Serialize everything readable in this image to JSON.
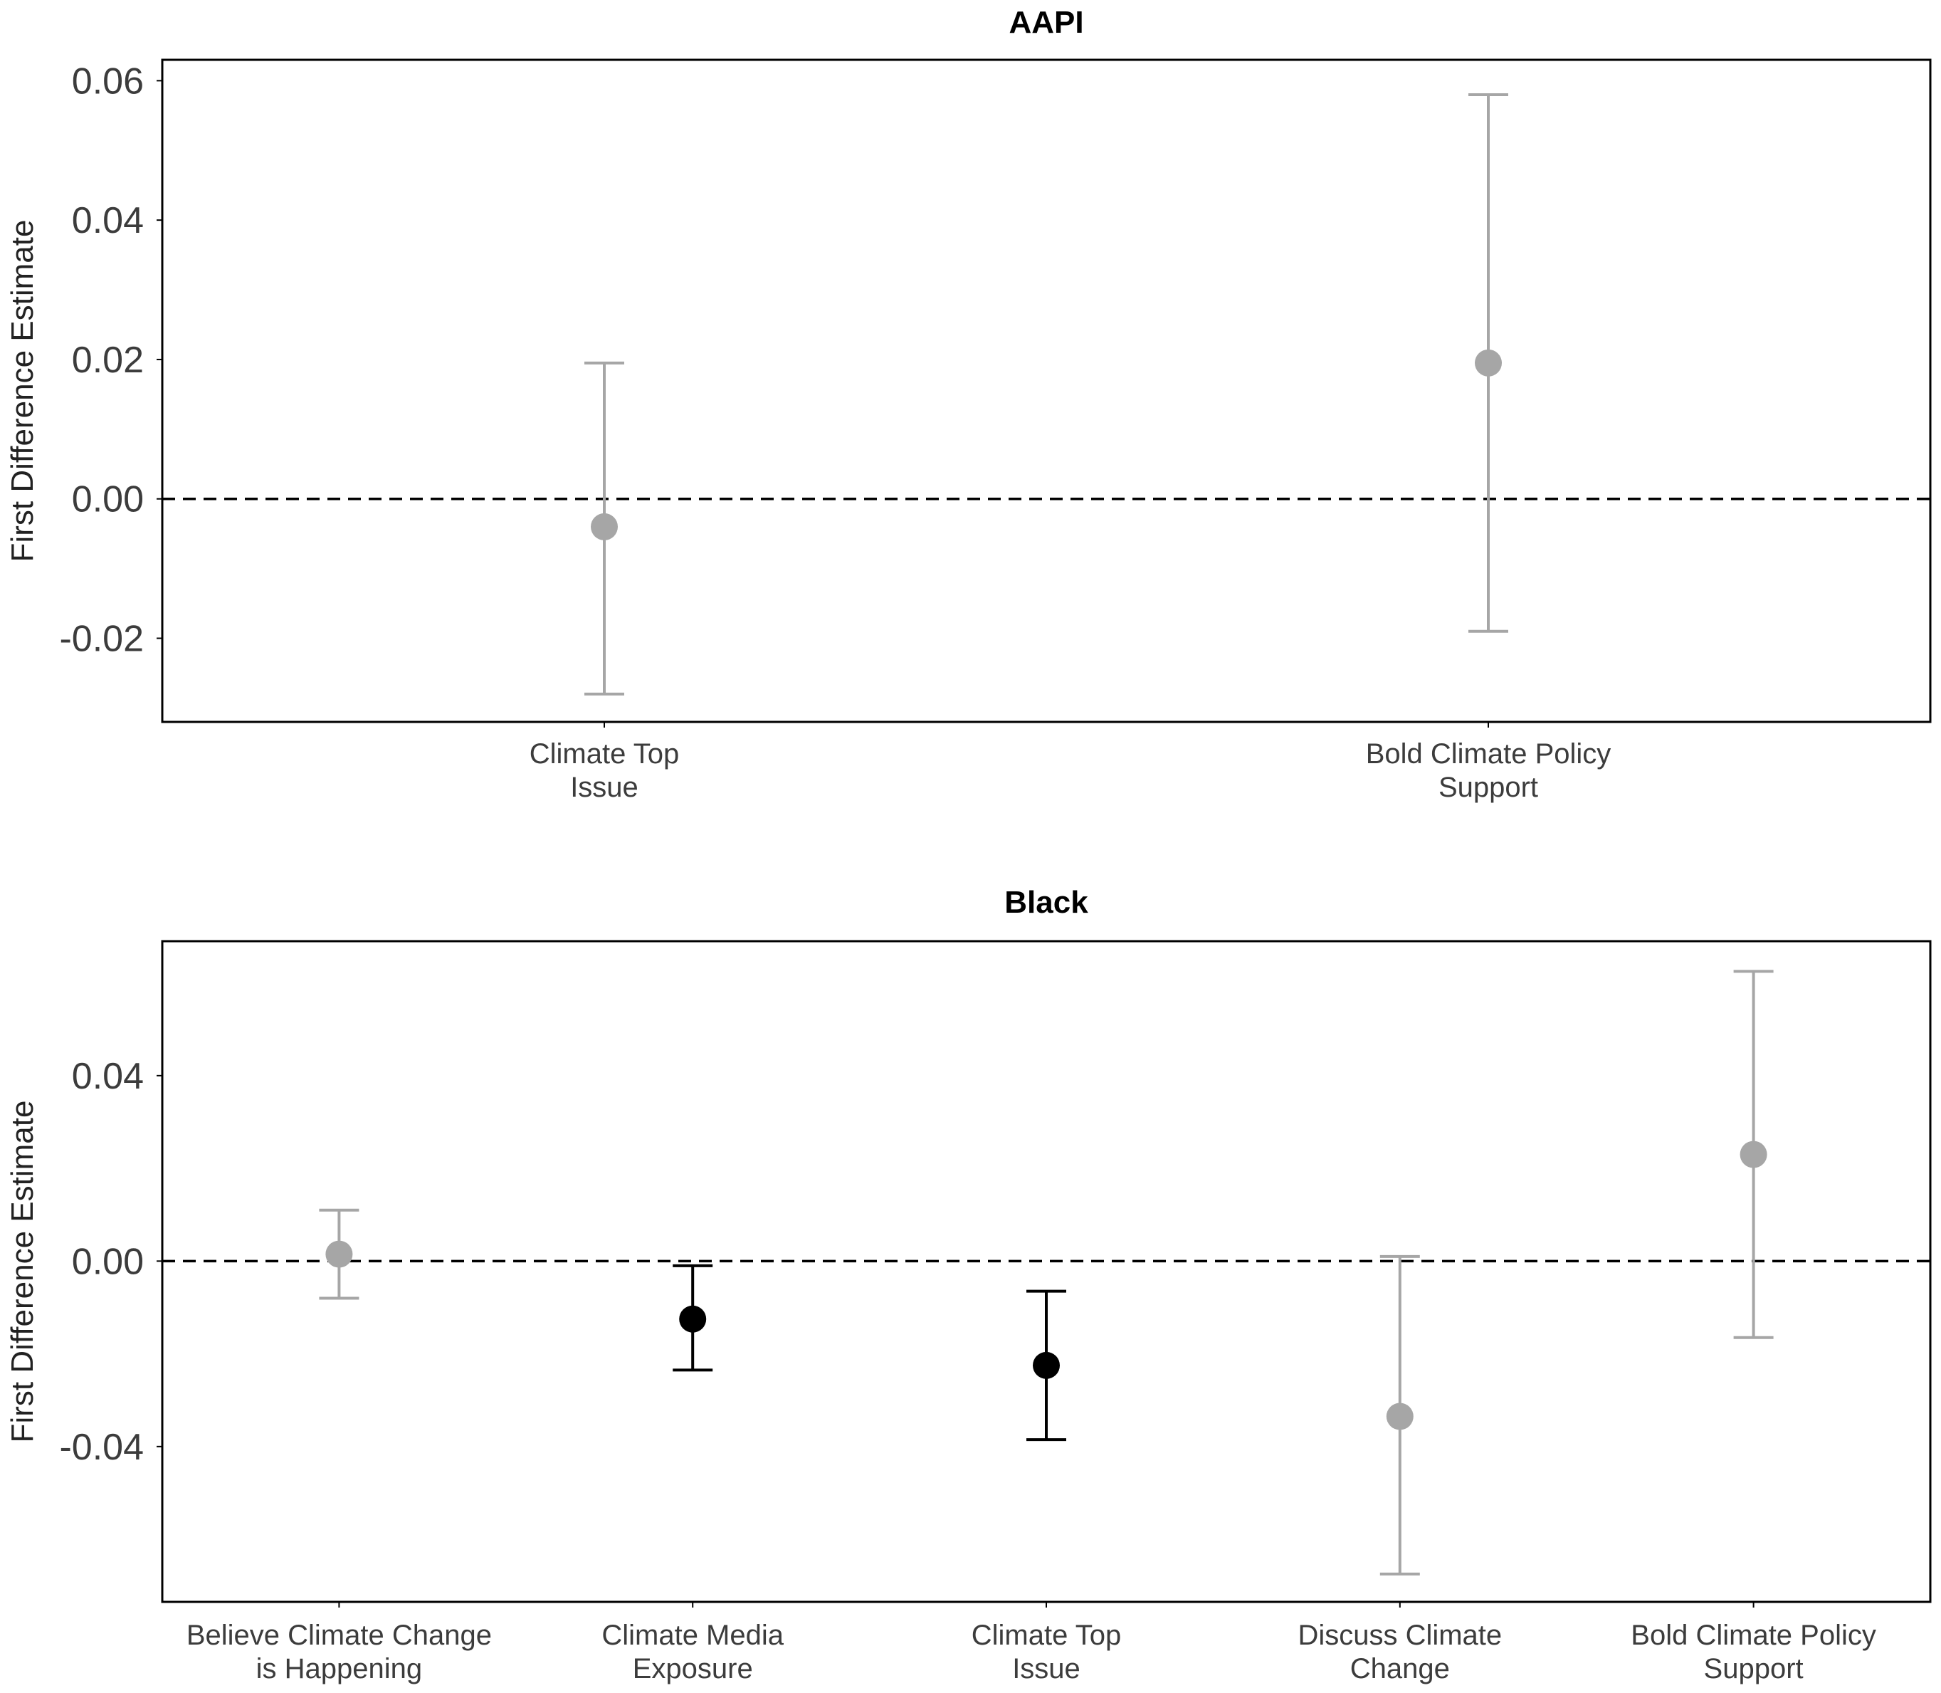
{
  "chart_data": [
    {
      "type": "scatter",
      "subtype": "point-estimate-with-error-bars",
      "title": "AAPI",
      "ylabel": "First Difference Estimate",
      "xlabel": "",
      "ylim": [
        -0.032,
        0.063
      ],
      "yticks": [
        0.06,
        0.04,
        0.02,
        0.0,
        -0.02
      ],
      "ytick_labels": [
        "0.06",
        "0.04",
        "0.02",
        "0.00",
        "-0.02"
      ],
      "reference_line": 0,
      "grid": false,
      "categories": [
        {
          "lines": [
            "Climate Top",
            "Issue"
          ],
          "estimate": -0.004,
          "lower": -0.028,
          "upper": 0.0195,
          "color": "#a6a6a6"
        },
        {
          "lines": [
            "Bold Climate Policy",
            "Support"
          ],
          "estimate": 0.0195,
          "lower": -0.019,
          "upper": 0.058,
          "color": "#a6a6a6"
        }
      ]
    },
    {
      "type": "scatter",
      "subtype": "point-estimate-with-error-bars",
      "title": "Black",
      "ylabel": "First Difference Estimate",
      "xlabel": "",
      "ylim": [
        -0.0735,
        0.069
      ],
      "yticks": [
        0.04,
        0.0,
        -0.04
      ],
      "ytick_labels": [
        "0.04",
        "0.00",
        "-0.04"
      ],
      "reference_line": 0,
      "grid": false,
      "categories": [
        {
          "lines": [
            "Believe Climate Change",
            "is Happening"
          ],
          "estimate": 0.0015,
          "lower": -0.008,
          "upper": 0.011,
          "color": "#a6a6a6"
        },
        {
          "lines": [
            "Climate Media",
            "Exposure"
          ],
          "estimate": -0.0125,
          "lower": -0.0235,
          "upper": -0.001,
          "color": "#000000"
        },
        {
          "lines": [
            "Climate Top",
            "Issue"
          ],
          "estimate": -0.0225,
          "lower": -0.0385,
          "upper": -0.0065,
          "color": "#000000"
        },
        {
          "lines": [
            "Discuss Climate",
            "Change"
          ],
          "estimate": -0.0335,
          "lower": -0.0675,
          "upper": 0.001,
          "color": "#a6a6a6"
        },
        {
          "lines": [
            "Bold Climate Policy",
            "Support"
          ],
          "estimate": 0.023,
          "lower": -0.0165,
          "upper": 0.0625,
          "color": "#a6a6a6"
        }
      ]
    }
  ]
}
